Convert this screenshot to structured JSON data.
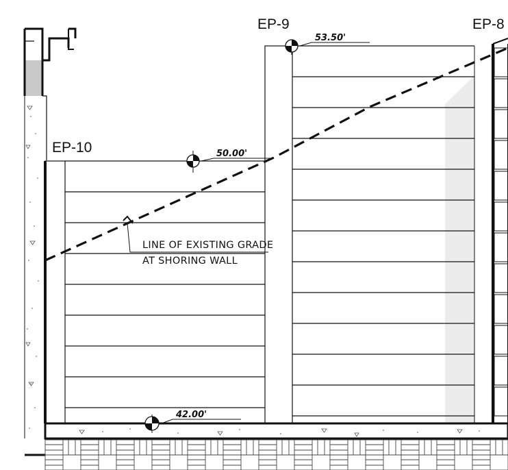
{
  "elevation_points": [
    {
      "id": "ep10",
      "label": "EP-10"
    },
    {
      "id": "ep9",
      "label": "EP-9"
    },
    {
      "id": "ep8",
      "label": "EP-8"
    }
  ],
  "elevations": [
    {
      "id": "el-5350",
      "value": "53.50'"
    },
    {
      "id": "el-5000",
      "value": "50.00'"
    },
    {
      "id": "el-4200",
      "value": "42.00'"
    }
  ],
  "grade_note": {
    "line1": "LINE OF EXISTING GRADE",
    "line2": "AT SHORING WALL"
  },
  "colors": {
    "line": "#111111",
    "pilaster_gray": "#c9c9c9",
    "shade_gray": "#ececec"
  }
}
